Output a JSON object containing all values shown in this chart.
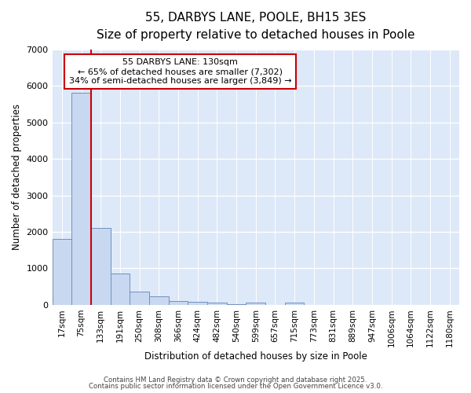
{
  "title_line1": "55, DARBYS LANE, POOLE, BH15 3ES",
  "title_line2": "Size of property relative to detached houses in Poole",
  "xlabel": "Distribution of detached houses by size in Poole",
  "ylabel": "Number of detached properties",
  "bar_labels": [
    "17sqm",
    "75sqm",
    "133sqm",
    "191sqm",
    "250sqm",
    "308sqm",
    "366sqm",
    "424sqm",
    "482sqm",
    "540sqm",
    "599sqm",
    "657sqm",
    "715sqm",
    "773sqm",
    "831sqm",
    "889sqm",
    "947sqm",
    "1006sqm",
    "1064sqm",
    "1122sqm",
    "1180sqm"
  ],
  "bar_values": [
    1800,
    5820,
    2100,
    850,
    360,
    230,
    110,
    90,
    60,
    10,
    60,
    5,
    60,
    5,
    3,
    2,
    1,
    1,
    0,
    0,
    0
  ],
  "bar_color": "#c8d8f0",
  "bar_edge_color": "#7090c0",
  "vline_x": 2,
  "vline_color": "#cc0000",
  "annotation_text": "55 DARBYS LANE: 130sqm\n← 65% of detached houses are smaller (7,302)\n34% of semi-detached houses are larger (3,849) →",
  "annotation_box_color": "#cc0000",
  "annotation_bg": "#ffffff",
  "ylim": [
    0,
    7000
  ],
  "yticks": [
    0,
    1000,
    2000,
    3000,
    4000,
    5000,
    6000,
    7000
  ],
  "bg_color": "#dde8f8",
  "plot_bg": "#dde8f8",
  "fig_bg": "#ffffff",
  "grid_color": "#ffffff",
  "footer_line1": "Contains HM Land Registry data © Crown copyright and database right 2025.",
  "footer_line2": "Contains public sector information licensed under the Open Government Licence v3.0.",
  "title_fontsize": 11,
  "subtitle_fontsize": 9.5,
  "label_fontsize": 8.5,
  "tick_fontsize": 7.5,
  "ann_fontsize": 8
}
